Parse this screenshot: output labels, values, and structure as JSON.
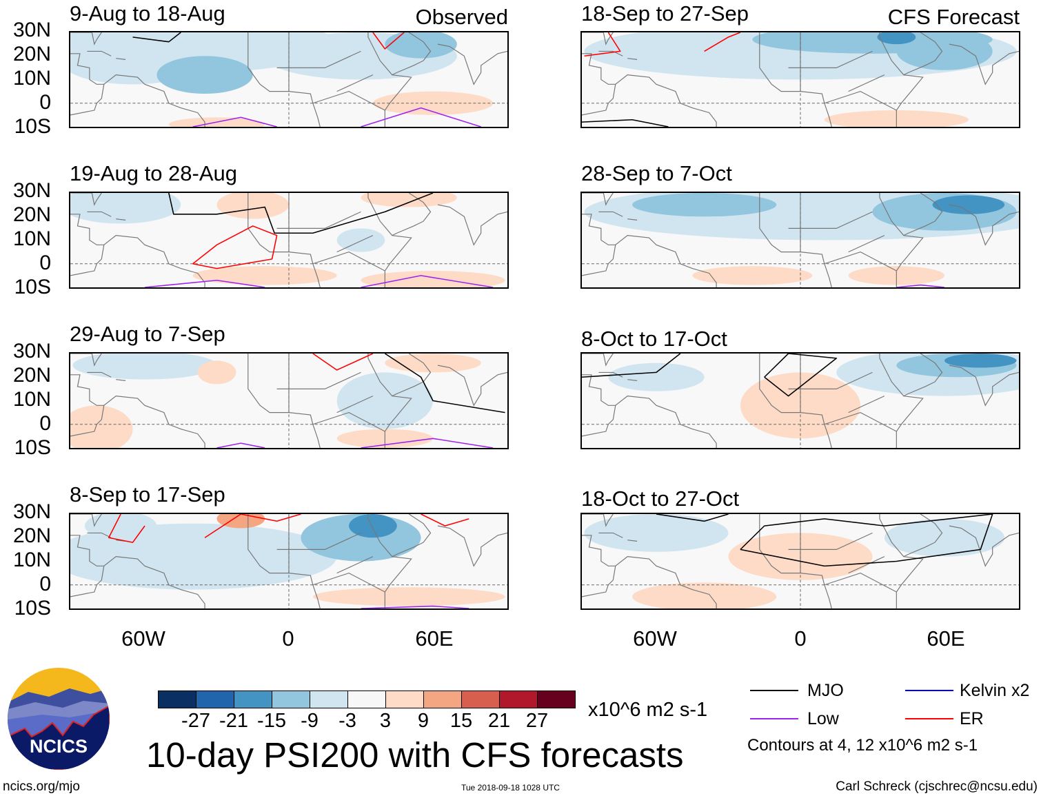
{
  "left_header_tag": "Observed",
  "right_header_tag": "CFS Forecast",
  "panels_left": [
    {
      "title": "9-Aug to 18-Aug",
      "type": "observed"
    },
    {
      "title": "19-Aug to 28-Aug",
      "type": "observed"
    },
    {
      "title": "29-Aug to 7-Sep",
      "type": "observed"
    },
    {
      "title": "8-Sep to 17-Sep",
      "type": "observed"
    }
  ],
  "panels_right": [
    {
      "title": "18-Sep to 27-Sep",
      "type": "forecast"
    },
    {
      "title": "28-Sep to 7-Oct",
      "type": "forecast"
    },
    {
      "title": "8-Oct to 17-Oct",
      "type": "forecast"
    },
    {
      "title": "18-Oct to 27-Oct",
      "type": "forecast"
    }
  ],
  "lat_labels": [
    "30N",
    "20N",
    "10N",
    "0",
    "10S"
  ],
  "lon_labels": [
    "60W",
    "0",
    "60E"
  ],
  "colorbar": {
    "levels": [
      "-27",
      "-21",
      "-15",
      "-9",
      "-3",
      "3",
      "9",
      "15",
      "21",
      "27"
    ],
    "colors": [
      "#0a2f63",
      "#2166ac",
      "#4393c3",
      "#92c5de",
      "#d1e5f0",
      "#f7f7f7",
      "#fddbc7",
      "#f4a582",
      "#d6604d",
      "#b2182b",
      "#67001f"
    ],
    "units": "x10^6 m2 s-1"
  },
  "title": "10-day PSI200 with CFS forecasts",
  "legend": {
    "items": [
      {
        "label": "MJO",
        "color": "#000000"
      },
      {
        "label": "Kelvin x2",
        "color": "#0000ff"
      },
      {
        "label": "Low",
        "color": "#a020f0"
      },
      {
        "label": "ER",
        "color": "#ff0000"
      }
    ],
    "contours_note": "Contours at 4, 12 x10^6 m2 s-1"
  },
  "logo_text": "NCICS",
  "footer": {
    "url": "ncics.org/mjo",
    "timestamp": "Tue 2018-09-18 1028 UTC",
    "author": "Carl Schreck (cjschrec@ncsu.edu)"
  }
}
